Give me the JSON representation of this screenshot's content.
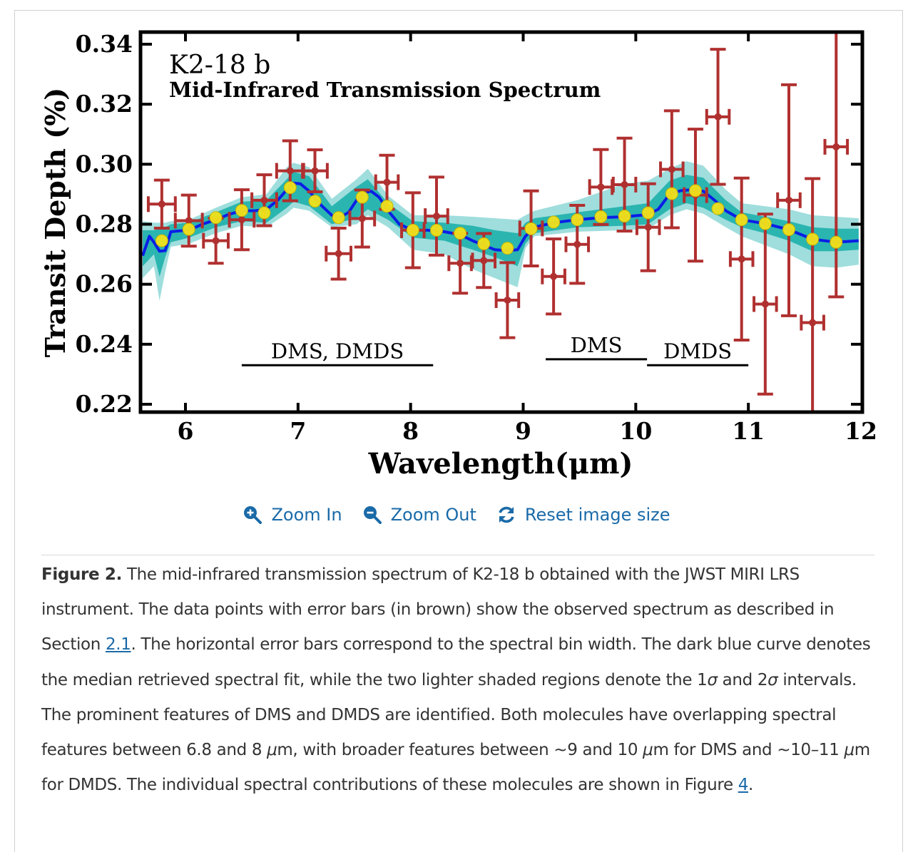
{
  "toolbar": {
    "zoom_in": {
      "label": "Zoom In",
      "icon": "zoom-in-icon"
    },
    "zoom_out": {
      "label": "Zoom Out",
      "icon": "zoom-out-icon"
    },
    "reset": {
      "label": "Reset image size",
      "icon": "refresh-icon"
    },
    "color": "#1a6aa8"
  },
  "caption": {
    "label": "Figure 2.",
    "parts": [
      {
        "type": "text",
        "text": " The mid-infrared transmission spectrum of K2-18 b obtained with the JWST MIRI LRS instrument. The data points with error bars (in brown) show the observed spectrum as described in Section "
      },
      {
        "type": "link",
        "text": "2.1"
      },
      {
        "type": "text",
        "text": ". The horizontal error bars correspond to the spectral bin width. The dark blue curve denotes the median retrieved spectral fit, while the two lighter shaded regions denote the 1"
      },
      {
        "type": "italic",
        "text": "σ"
      },
      {
        "type": "text",
        "text": " and 2"
      },
      {
        "type": "italic",
        "text": "σ"
      },
      {
        "type": "text",
        "text": " intervals. The prominent features of DMS and DMDS are identified. Both molecules have overlapping spectral features between 6.8 and 8 "
      },
      {
        "type": "italic",
        "text": "μ"
      },
      {
        "type": "text",
        "text": "m, with broader features between ~9 and 10 "
      },
      {
        "type": "italic",
        "text": "μ"
      },
      {
        "type": "text",
        "text": "m for DMS and ~10–11 "
      },
      {
        "type": "italic",
        "text": "μ"
      },
      {
        "type": "text",
        "text": "m for DMDS. The individual spectral contributions of these molecules are shown in Figure "
      },
      {
        "type": "link",
        "text": "4"
      },
      {
        "type": "text",
        "text": "."
      }
    ]
  },
  "colors": {
    "observed": "#b03030",
    "median_fit": "#0a1ee6",
    "band_1sigma": "#2bb5b0",
    "band_2sigma": "#9fdedd",
    "binned_model": "#f2e21a",
    "axis": "#000000"
  },
  "chart_data": {
    "type": "scatter",
    "title": "K2-18 b",
    "subtitle": "Mid-Infrared Transmission Spectrum",
    "xlabel": "Wavelength(μm)",
    "ylabel": "Transit Depth (%)",
    "xlim": [
      5.6,
      12.0
    ],
    "ylim": [
      0.217,
      0.345
    ],
    "xticks": [
      6,
      7,
      8,
      9,
      10,
      11,
      12
    ],
    "xtick_labels": [
      "6",
      "7",
      "8",
      "9",
      "10",
      "11",
      "12"
    ],
    "yticks": [
      0.22,
      0.24,
      0.26,
      0.28,
      0.3,
      0.32,
      0.34
    ],
    "ytick_labels": [
      "0.22",
      "0.24",
      "0.26",
      "0.28",
      "0.30",
      "0.32",
      "0.34"
    ],
    "grid": false,
    "annotations": [
      {
        "text": "DMS, DMDS",
        "x_range": [
          6.5,
          8.2
        ],
        "y": 0.233
      },
      {
        "text": "DMS",
        "x_range": [
          9.2,
          10.1
        ],
        "y": 0.235
      },
      {
        "text": "DMDS",
        "x_range": [
          10.1,
          11.0
        ],
        "y": 0.233
      }
    ],
    "series": [
      {
        "name": "Observed spectrum",
        "kind": "errorbar",
        "x": [
          5.79,
          6.03,
          6.27,
          6.5,
          6.7,
          6.93,
          7.15,
          7.36,
          7.57,
          7.79,
          8.02,
          8.23,
          8.44,
          8.65,
          8.86,
          9.07,
          9.27,
          9.48,
          9.69,
          9.9,
          10.11,
          10.32,
          10.53,
          10.73,
          10.94,
          11.15,
          11.36,
          11.57,
          11.78
        ],
        "y": [
          0.2867,
          0.2812,
          0.2745,
          0.2815,
          0.288,
          0.2978,
          0.2978,
          0.2702,
          0.2819,
          0.294,
          0.278,
          0.2827,
          0.267,
          0.2679,
          0.2547,
          0.2786,
          0.2626,
          0.2733,
          0.2924,
          0.2932,
          0.279,
          0.2983,
          0.2897,
          0.3158,
          0.2684,
          0.2534,
          0.288,
          0.2472,
          0.3058
        ],
        "yerr": [
          0.008,
          0.0085,
          0.0075,
          0.01,
          0.0085,
          0.01,
          0.007,
          0.0085,
          0.0095,
          0.009,
          0.0125,
          0.013,
          0.01,
          0.009,
          0.0125,
          0.0125,
          0.0125,
          0.013,
          0.0125,
          0.0155,
          0.0145,
          0.0195,
          0.022,
          0.0225,
          0.027,
          0.03,
          0.0385,
          0.048,
          0.05
        ],
        "xerr": [
          0.12,
          0.12,
          0.11,
          0.11,
          0.11,
          0.12,
          0.11,
          0.11,
          0.11,
          0.1,
          0.1,
          0.1,
          0.1,
          0.1,
          0.1,
          0.1,
          0.1,
          0.1,
          0.1,
          0.1,
          0.1,
          0.1,
          0.1,
          0.1,
          0.1,
          0.1,
          0.1,
          0.1,
          0.1
        ]
      },
      {
        "name": "Binned median model",
        "kind": "scatter",
        "x": [
          5.79,
          6.03,
          6.27,
          6.5,
          6.7,
          6.93,
          7.15,
          7.36,
          7.57,
          7.79,
          8.02,
          8.23,
          8.44,
          8.65,
          8.86,
          9.07,
          9.27,
          9.48,
          9.69,
          9.9,
          10.11,
          10.32,
          10.53,
          10.73,
          10.94,
          11.15,
          11.36,
          11.57,
          11.78
        ],
        "y": [
          0.2745,
          0.2783,
          0.2822,
          0.2846,
          0.2838,
          0.2922,
          0.2877,
          0.2822,
          0.289,
          0.286,
          0.278,
          0.278,
          0.277,
          0.2735,
          0.272,
          0.2785,
          0.2807,
          0.2815,
          0.2825,
          0.2827,
          0.2838,
          0.2902,
          0.2912,
          0.2852,
          0.2815,
          0.2802,
          0.2782,
          0.275,
          0.274
        ]
      },
      {
        "name": "Median retrieved spectral fit",
        "kind": "line",
        "x": [
          5.62,
          5.68,
          5.72,
          5.77,
          5.82,
          5.87,
          5.95,
          6.03,
          6.15,
          6.27,
          6.38,
          6.5,
          6.62,
          6.72,
          6.82,
          6.9,
          6.96,
          7.02,
          7.1,
          7.2,
          7.3,
          7.37,
          7.45,
          7.52,
          7.58,
          7.65,
          7.72,
          7.8,
          7.9,
          8.02,
          8.15,
          8.3,
          8.44,
          8.55,
          8.65,
          8.75,
          8.86,
          8.95,
          9.02,
          9.1,
          9.27,
          9.48,
          9.69,
          9.9,
          10.11,
          10.2,
          10.3,
          10.4,
          10.5,
          10.6,
          10.7,
          10.8,
          10.94,
          11.15,
          11.36,
          11.57,
          11.78,
          11.98
        ],
        "y": [
          0.2695,
          0.276,
          0.274,
          0.271,
          0.2712,
          0.2775,
          0.2778,
          0.278,
          0.28,
          0.2815,
          0.2832,
          0.2845,
          0.2845,
          0.285,
          0.288,
          0.2915,
          0.2937,
          0.2935,
          0.291,
          0.2865,
          0.283,
          0.2822,
          0.284,
          0.288,
          0.2905,
          0.291,
          0.289,
          0.2845,
          0.28,
          0.278,
          0.278,
          0.2775,
          0.2765,
          0.2745,
          0.273,
          0.2715,
          0.2712,
          0.2715,
          0.276,
          0.279,
          0.2805,
          0.2815,
          0.2822,
          0.2825,
          0.2832,
          0.285,
          0.29,
          0.2912,
          0.2915,
          0.291,
          0.288,
          0.2845,
          0.2815,
          0.2802,
          0.2782,
          0.275,
          0.274,
          0.2745
        ]
      },
      {
        "name": "1σ interval",
        "kind": "band",
        "x": [
          5.62,
          5.72,
          5.77,
          5.82,
          5.87,
          6.03,
          6.27,
          6.5,
          6.72,
          6.9,
          6.96,
          7.1,
          7.3,
          7.52,
          7.62,
          7.8,
          8.02,
          8.3,
          8.55,
          8.75,
          8.95,
          9.02,
          9.1,
          9.48,
          9.9,
          10.11,
          10.3,
          10.45,
          10.6,
          10.8,
          10.94,
          11.15,
          11.36,
          11.57,
          11.78,
          11.98
        ],
        "lower": [
          0.266,
          0.27,
          0.2625,
          0.269,
          0.274,
          0.2755,
          0.279,
          0.281,
          0.2805,
          0.2855,
          0.2875,
          0.286,
          0.28,
          0.282,
          0.285,
          0.2815,
          0.2755,
          0.2745,
          0.2715,
          0.269,
          0.266,
          0.2735,
          0.277,
          0.279,
          0.2795,
          0.28,
          0.285,
          0.287,
          0.2855,
          0.2815,
          0.279,
          0.277,
          0.2745,
          0.271,
          0.271,
          0.2715
        ],
        "upper": [
          0.278,
          0.278,
          0.2785,
          0.279,
          0.28,
          0.2805,
          0.284,
          0.2875,
          0.288,
          0.295,
          0.2975,
          0.296,
          0.286,
          0.2925,
          0.295,
          0.287,
          0.281,
          0.2805,
          0.2795,
          0.278,
          0.277,
          0.2805,
          0.282,
          0.284,
          0.286,
          0.287,
          0.2945,
          0.2965,
          0.2955,
          0.288,
          0.284,
          0.2825,
          0.281,
          0.279,
          0.2785,
          0.2785
        ]
      },
      {
        "name": "2σ interval",
        "kind": "band",
        "x": [
          5.62,
          5.72,
          5.77,
          5.82,
          5.87,
          6.03,
          6.27,
          6.5,
          6.72,
          6.9,
          6.96,
          7.1,
          7.3,
          7.52,
          7.62,
          7.8,
          8.02,
          8.3,
          8.55,
          8.75,
          8.95,
          9.02,
          9.1,
          9.48,
          9.9,
          10.11,
          10.3,
          10.45,
          10.6,
          10.8,
          10.94,
          11.15,
          11.36,
          11.57,
          11.78,
          11.98
        ],
        "lower": [
          0.262,
          0.266,
          0.2545,
          0.264,
          0.2725,
          0.2735,
          0.277,
          0.2795,
          0.279,
          0.2835,
          0.2855,
          0.2845,
          0.279,
          0.28,
          0.283,
          0.279,
          0.2715,
          0.27,
          0.265,
          0.262,
          0.259,
          0.272,
          0.276,
          0.2775,
          0.278,
          0.2785,
          0.283,
          0.285,
          0.2835,
          0.279,
          0.276,
          0.273,
          0.27,
          0.266,
          0.2655,
          0.2665
        ],
        "upper": [
          0.281,
          0.2805,
          0.2805,
          0.2805,
          0.281,
          0.2815,
          0.2855,
          0.289,
          0.29,
          0.299,
          0.3005,
          0.299,
          0.2885,
          0.295,
          0.2985,
          0.2895,
          0.283,
          0.283,
          0.2825,
          0.282,
          0.2815,
          0.283,
          0.2845,
          0.288,
          0.2935,
          0.2945,
          0.2985,
          0.301,
          0.2995,
          0.2915,
          0.287,
          0.286,
          0.285,
          0.283,
          0.2825,
          0.282
        ]
      }
    ]
  }
}
